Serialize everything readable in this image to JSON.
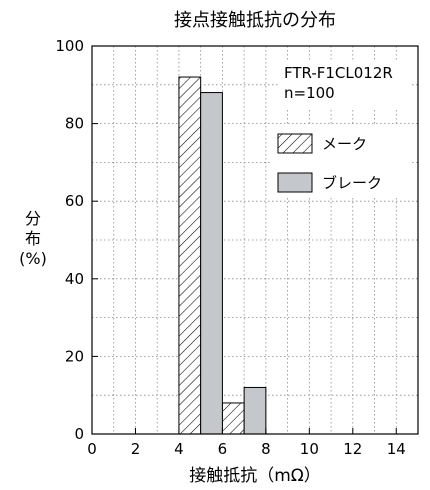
{
  "chart_data": {
    "type": "bar",
    "title": "接点接触抵抗の分布",
    "xlabel": "接触抵抗（mΩ）",
    "ylabel": [
      "分",
      "布",
      "(%)"
    ],
    "annotation": [
      "FTR-F1CL012R",
      "n=100"
    ],
    "xlim": [
      0,
      15
    ],
    "ylim": [
      0,
      100
    ],
    "xticks": [
      0,
      2,
      4,
      6,
      8,
      10,
      12,
      14
    ],
    "yticks": [
      0,
      20,
      40,
      60,
      80,
      100
    ],
    "grid": true,
    "legend_position": "right, upper-middle",
    "bins": [
      [
        4,
        5
      ],
      [
        5,
        6
      ],
      [
        6,
        7
      ],
      [
        7,
        8
      ]
    ],
    "series": [
      {
        "name": "メーク",
        "pattern": "diagonal-hatch",
        "color": "#ffffff",
        "stroke": "#000000",
        "bars": [
          {
            "x0": 4,
            "x1": 5,
            "value": 92
          },
          {
            "x0": 6,
            "x1": 7,
            "value": 8
          }
        ]
      },
      {
        "name": "ブレーク",
        "pattern": "solid",
        "color": "#c4c8cc",
        "stroke": "#000000",
        "bars": [
          {
            "x0": 5,
            "x1": 6,
            "value": 88
          },
          {
            "x0": 7,
            "x1": 8,
            "value": 12
          }
        ]
      }
    ]
  }
}
